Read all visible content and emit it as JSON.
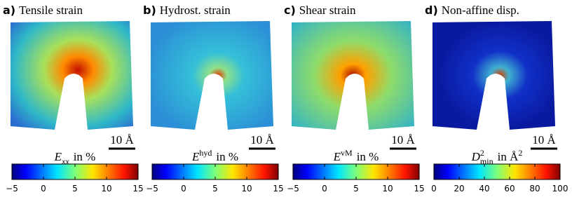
{
  "panels": [
    {
      "letter": "a)",
      "title": "Tensile strain",
      "scale_bar": "10 Å",
      "colorbar": {
        "symbol": "E",
        "sub": "xx",
        "sub_italic": true,
        "unit": "in %",
        "lim": [
          -5,
          15
        ],
        "ticks": [
          {
            "value": -5,
            "label": "−5"
          },
          0,
          5,
          10,
          15
        ]
      }
    },
    {
      "letter": "b)",
      "title": "Hydrost. strain",
      "scale_bar": "10 Å",
      "colorbar": {
        "symbol": "E",
        "sup": "hyd",
        "unit": "in %",
        "lim": [
          -5,
          15
        ],
        "ticks": [
          {
            "value": -5,
            "label": "−5"
          },
          0,
          5,
          10,
          15
        ]
      }
    },
    {
      "letter": "c)",
      "title": "Shear strain",
      "scale_bar": "10 Å",
      "colorbar": {
        "symbol": "E",
        "sup": "vM",
        "unit": "in %",
        "lim": [
          -5,
          15
        ],
        "ticks": [
          {
            "value": -5,
            "label": "−5"
          },
          0,
          5,
          10,
          15
        ]
      }
    },
    {
      "letter": "d)",
      "title": "Non-affine disp.",
      "scale_bar": "10 Å",
      "colorbar": {
        "symbol": "D",
        "sup": "2",
        "sub": "min",
        "unit": "in Å",
        "unit_sup": "2",
        "lim": [
          0,
          100
        ],
        "ticks": [
          0,
          20,
          40,
          60,
          80,
          100
        ]
      }
    }
  ]
}
